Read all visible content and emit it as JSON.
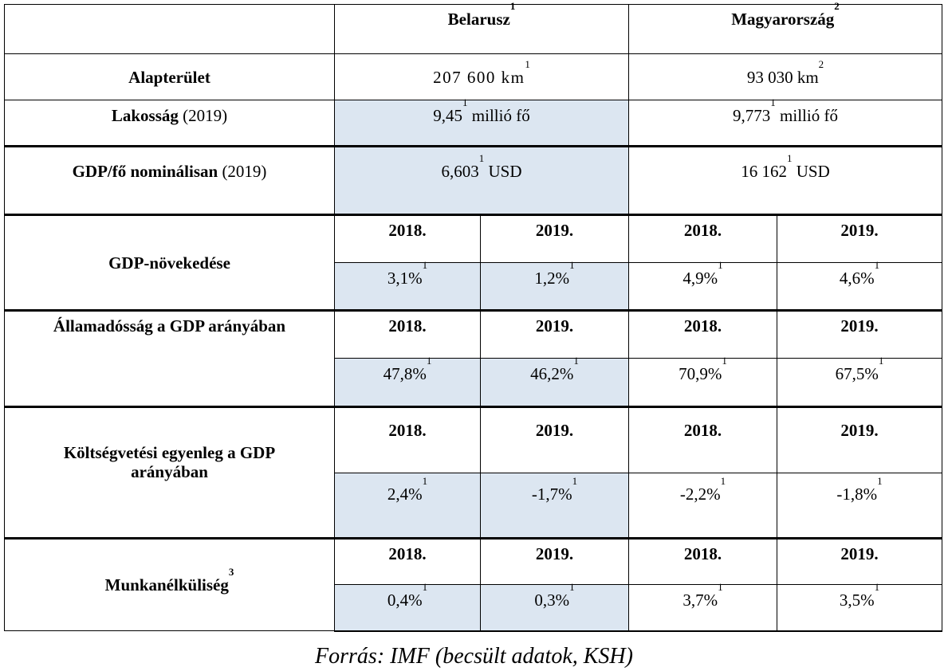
{
  "countries": [
    {
      "name": "Belarusz",
      "sup": "1"
    },
    {
      "name": "Magyarország",
      "sup": "2"
    }
  ],
  "rows": {
    "area": {
      "label": "Alapterület",
      "values": [
        {
          "v": "207 600 km",
          "s": "1"
        },
        {
          "v": "93 030 km",
          "s": "2"
        }
      ]
    },
    "population": {
      "label": "Lakosság",
      "year": " (2019)",
      "values": [
        {
          "v": "9,45",
          "s": "1",
          "u": " millió fő"
        },
        {
          "v": "9,773",
          "s": "1",
          "u": " millió fő"
        }
      ]
    },
    "gdp_per_capita": {
      "label": "GDP/fő nominálisan",
      "year": " (2019)",
      "values": [
        {
          "v": "6,603",
          "s": "1",
          "u": " USD"
        },
        {
          "v": "16 162",
          "s": "1",
          "u": " USD"
        }
      ]
    },
    "gdp_growth": {
      "label": "GDP-növekedése",
      "years": [
        "2018.",
        "2019.",
        "2018.",
        "2019."
      ],
      "values": [
        "3,1%",
        "1,2%",
        "4,9%",
        "4,6%"
      ],
      "sup": "1"
    },
    "public_debt": {
      "label": "Államadósság a GDP arányában",
      "years": [
        "2018.",
        "2019.",
        "2018.",
        "2019."
      ],
      "values": [
        "47,8%",
        "46,2%",
        "70,9%",
        "67,5%"
      ],
      "sup": "1"
    },
    "budget_balance": {
      "label_line1": "Költségvetési egyenleg a GDP",
      "label_line2": "arányában",
      "years": [
        "2018.",
        "2019.",
        "2018.",
        "2019."
      ],
      "values": [
        "2,4%",
        "-1,7%",
        "-2,2%",
        "-1,8%"
      ],
      "sup": "1"
    },
    "unemployment": {
      "label": "Munkanélküliség",
      "label_sup": "3",
      "years": [
        "2018.",
        "2019.",
        "2018.",
        "2019."
      ],
      "values": [
        "0,4%",
        "0,3%",
        "3,7%",
        "3,5%"
      ],
      "sup": "1"
    }
  },
  "source": "Forrás: IMF (becsült adatok, KSH)"
}
